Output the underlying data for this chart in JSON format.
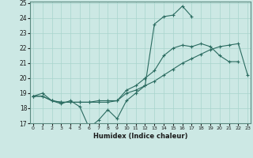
{
  "title": "",
  "xlabel": "Humidex (Indice chaleur)",
  "bg_color": "#cce8e4",
  "line_color": "#2a6b60",
  "grid_color": "#a8d4cc",
  "xmin": 0,
  "xmax": 23,
  "ymin": 17,
  "ymax": 25,
  "series": [
    {
      "x": [
        0,
        1,
        2,
        3,
        4,
        5,
        6,
        7,
        8,
        9,
        10,
        11,
        12,
        13,
        14,
        15,
        16,
        17,
        18
      ],
      "y": [
        18.8,
        19.0,
        18.5,
        18.3,
        18.5,
        18.1,
        16.7,
        17.2,
        17.9,
        17.3,
        18.5,
        19.0,
        19.5,
        23.6,
        24.1,
        24.2,
        24.8,
        24.1,
        null
      ]
    },
    {
      "x": [
        0,
        1,
        2,
        3,
        4,
        5,
        6,
        7,
        8,
        9,
        10,
        11,
        12,
        13,
        14,
        15,
        16,
        17,
        18,
        19,
        20,
        21,
        22
      ],
      "y": [
        18.8,
        18.8,
        18.5,
        18.4,
        18.4,
        18.4,
        18.4,
        18.5,
        18.5,
        18.5,
        19.2,
        19.5,
        20.0,
        20.5,
        21.5,
        22.0,
        22.2,
        22.1,
        22.3,
        22.1,
        21.5,
        21.1,
        21.1
      ]
    },
    {
      "x": [
        0,
        1,
        2,
        3,
        4,
        5,
        6,
        7,
        8,
        9,
        10,
        11,
        12,
        13,
        14,
        15,
        16,
        17,
        18,
        19,
        20,
        21,
        22,
        23
      ],
      "y": [
        18.8,
        18.8,
        18.5,
        18.4,
        18.4,
        18.4,
        18.4,
        18.4,
        18.4,
        18.5,
        19.0,
        19.2,
        19.5,
        19.8,
        20.2,
        20.6,
        21.0,
        21.3,
        21.6,
        21.9,
        22.1,
        22.2,
        22.3,
        20.2
      ]
    }
  ]
}
